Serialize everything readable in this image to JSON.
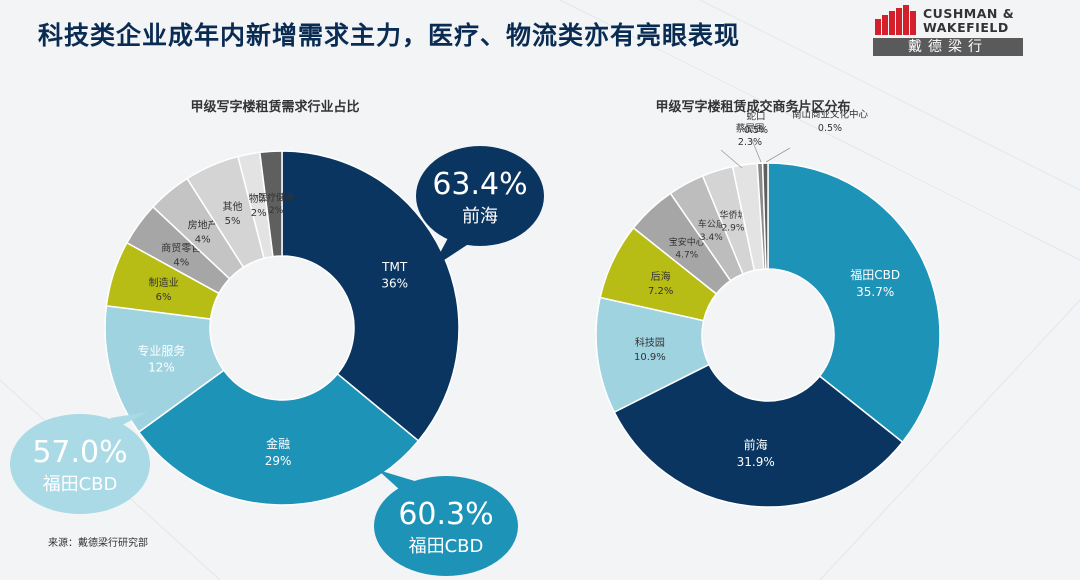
{
  "page_title": "科技类企业成年内新增需求主力，医疗、物流类亦有亮眼表现",
  "logo": {
    "english": "CUSHMAN &\nWAKEFIELD",
    "chinese": "戴德梁行"
  },
  "source": "来源：戴德梁行研究部",
  "colors": {
    "navy": "#0a3560",
    "teal": "#1e93b8",
    "light_blue": "#9fd3e0",
    "olive": "#b7bd14",
    "gray": "#a6a6a6",
    "light_gray": "#d4d4d4",
    "lighter_gray": "#e3e3e3",
    "dark_gray": "#5f5f5f"
  },
  "chart_data": [
    {
      "type": "pie",
      "title": "甲级写字楼租赁需求行业占比",
      "categories": [
        "TMT",
        "金融",
        "专业服务",
        "制造业",
        "商贸零售",
        "房地产",
        "其他",
        "物流",
        "医疗健康"
      ],
      "values": [
        36,
        29,
        12,
        6,
        4,
        4,
        5,
        2,
        2
      ],
      "value_labels": [
        "36%",
        "29%",
        "12%",
        "6%",
        "4%",
        "4%",
        "5%",
        "2%",
        "2%"
      ],
      "colors": [
        "#0a3560",
        "#1e93b8",
        "#9fd3e0",
        "#b7bd14",
        "#a6a6a6",
        "#c4c4c4",
        "#d4d4d4",
        "#e3e3e3",
        "#5f5f5f"
      ],
      "callouts": [
        {
          "value": "63.4%",
          "label": "前海"
        },
        {
          "value": "60.3%",
          "label": "福田CBD"
        },
        {
          "value": "57.0%",
          "label": "福田CBD"
        }
      ]
    },
    {
      "type": "pie",
      "title": "甲级写字楼租赁成交商务片区分布",
      "categories": [
        "福田CBD",
        "前海",
        "科技园",
        "后海",
        "宝安中心",
        "车公庙",
        "华侨城",
        "蔡屋围",
        "蛇口",
        "南山商业文化中心"
      ],
      "values": [
        35.7,
        31.9,
        10.9,
        7.2,
        4.7,
        3.4,
        2.9,
        2.3,
        0.5,
        0.5
      ],
      "value_labels": [
        "35.7%",
        "31.9%",
        "10.9%",
        "7.2%",
        "4.7%",
        "3.4%",
        "2.9%",
        "2.3%",
        "0.5%",
        "0.5%"
      ],
      "colors": [
        "#1e93b8",
        "#0a3560",
        "#9fd3e0",
        "#b7bd14",
        "#a6a6a6",
        "#bdbdbd",
        "#d4d4d4",
        "#e3e3e3",
        "#8a8a8a",
        "#5f5f5f"
      ]
    }
  ]
}
